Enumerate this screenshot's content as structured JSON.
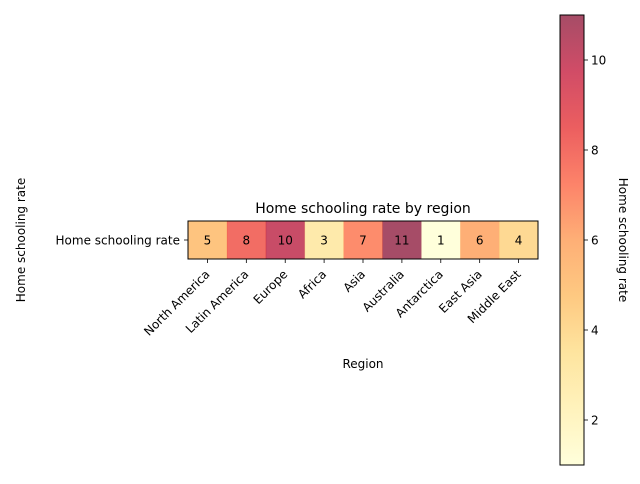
{
  "chart_data": {
    "type": "heatmap",
    "title": "Home schooling rate by region",
    "xlabel": "Region",
    "ylabel": "Home schooling rate",
    "row_labels": [
      "Home schooling rate"
    ],
    "categories": [
      "North America",
      "Latin America",
      "Europe",
      "Africa",
      "Asia",
      "Australia",
      "Antarctica",
      "East Asia",
      "Middle East"
    ],
    "values": [
      5,
      8,
      10,
      3,
      7,
      11,
      1,
      6,
      4
    ],
    "colormap": "YlOrRd",
    "alpha": 0.7,
    "vmin": 1,
    "vmax": 11,
    "colorbar": {
      "label": "Home schooling rate",
      "ticks": [
        2,
        4,
        6,
        8,
        10
      ],
      "tick_labels": [
        "2",
        "4",
        "6",
        "8",
        "10"
      ]
    },
    "grid": false
  }
}
